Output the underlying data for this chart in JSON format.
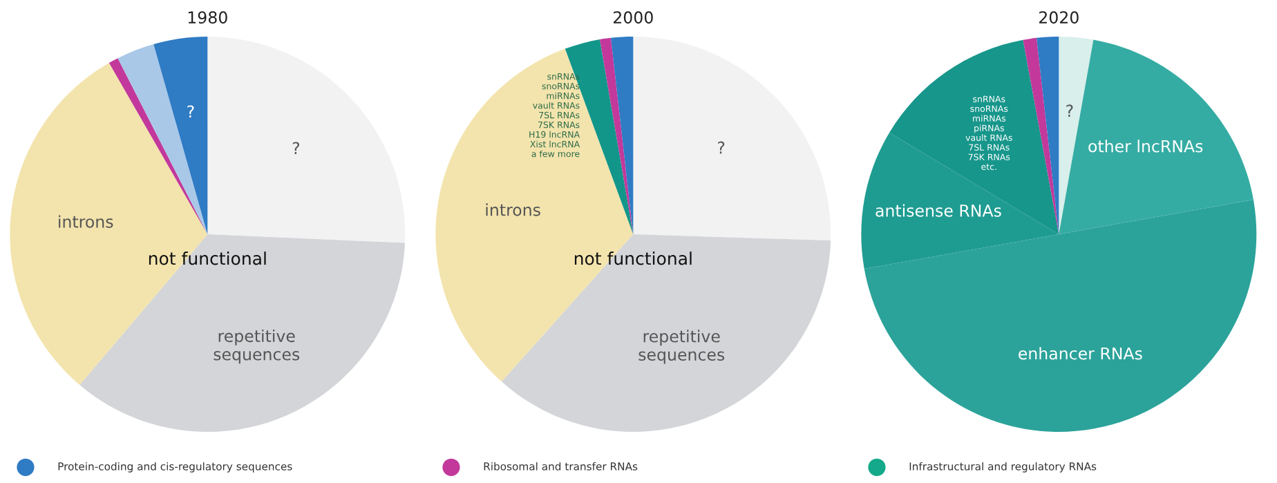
{
  "chart_data": [
    {
      "type": "pie",
      "title": "1980",
      "categories": [
        "?",
        "repetitive\nsequences",
        "introns",
        null,
        null,
        "?"
      ],
      "values": [
        25.7,
        35.5,
        30.5,
        0.8,
        3.1,
        4.4
      ],
      "colors": [
        "#f2f2f3",
        "#d3d5d8",
        "#f3e4ad",
        "#c2399b",
        "#a9c8e8",
        "#2f7bc4"
      ],
      "annotations": [
        "not functional"
      ]
    },
    {
      "type": "pie",
      "title": "2000",
      "categories": [
        "?",
        "repetitive\nsequences",
        "introns",
        "snRNAs\nsnoRNAs\nmiRNAs\nvault RNAs\n7SL RNAs\n7SK RNAs\nH19 lncRNA\nXist lncRNA\na few more",
        null,
        null
      ],
      "values": [
        25.5,
        36.1,
        32.8,
        2.9,
        0.9,
        1.8
      ],
      "colors": [
        "#f2f2f3",
        "#d3d5d8",
        "#f3e4ad",
        "#13968a",
        "#c2399b",
        "#2f7bc4"
      ],
      "annotations": [
        "not functional"
      ]
    },
    {
      "type": "pie",
      "title": "2020",
      "categories": [
        "?",
        "other lncRNAs",
        "enhancer RNAs",
        "antisense RNAs",
        "snRNAs\nsnoRNAs\nmiRNAs\npiRNAs\nvault RNAs\n7SL RNAs\n7SK RNAs\netc.",
        null,
        null
      ],
      "values": [
        2.8,
        19.4,
        50.0,
        11.4,
        13.5,
        1.1,
        1.8
      ],
      "colors": [
        "#d8efec",
        "#35aca3",
        "#2ba39a",
        "#1f9c91",
        "#17968b",
        "#c2399b",
        "#2f7bc4"
      ]
    },
    {
      "type": "other",
      "categories": [
        "Protein-coding and cis-regulatory sequences",
        "Ribosomal and transfer RNAs",
        "Infrastructural and regulatory RNAs"
      ],
      "colors": [
        "#2f7bc4",
        "#c2399b",
        "#13a98a"
      ]
    }
  ]
}
